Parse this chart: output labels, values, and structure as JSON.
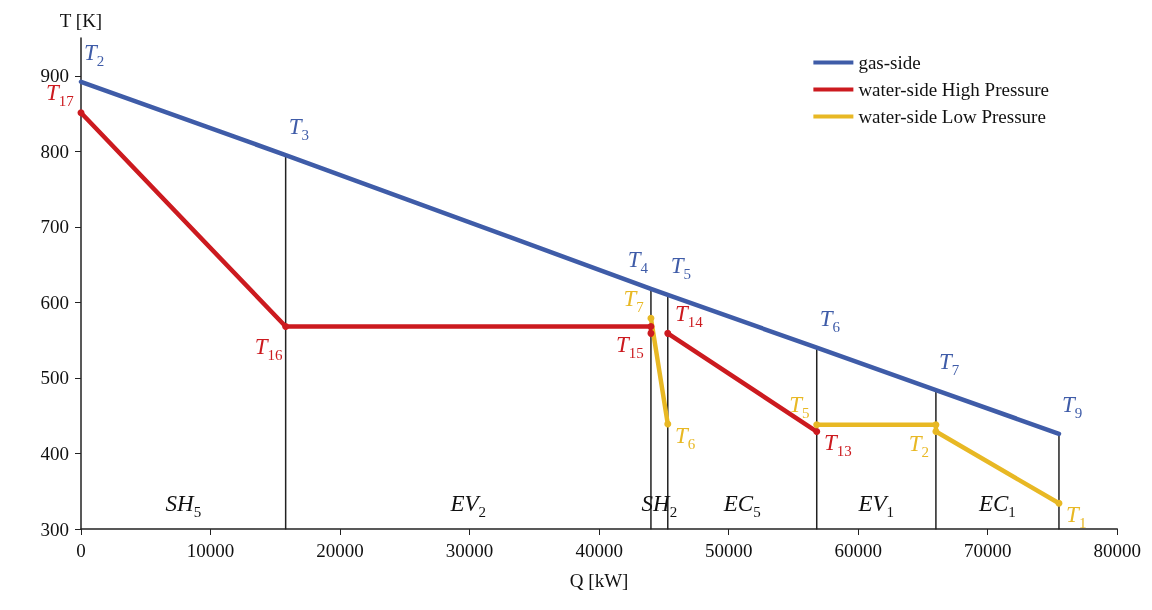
{
  "chart_data": {
    "type": "line",
    "xlabel": "Q [kW]",
    "ylabel": "T [K]",
    "xlim": [
      0,
      80000
    ],
    "xticks": [
      0,
      10000,
      20000,
      30000,
      40000,
      50000,
      60000,
      70000,
      80000
    ],
    "ylim": [
      300,
      950
    ],
    "yticks": [
      300,
      400,
      500,
      600,
      700,
      800,
      900
    ],
    "grid": false,
    "legend": "top right",
    "line_style": "solid",
    "series": [
      {
        "name": "gas-side",
        "color": "#3f5ca8",
        "marker": "none",
        "x": [
          0,
          15800,
          44000,
          45300,
          56800,
          66000,
          75500
        ],
        "values": [
          892,
          795,
          618,
          610,
          540,
          484,
          426
        ]
      },
      {
        "name": "water-side High Pressure",
        "color": "#cc1a1f",
        "marker": "circle",
        "x": [
          0,
          15800,
          44000,
          44000,
          44600,
          45300,
          56800
        ],
        "values": [
          851,
          568,
          568,
          559,
          null,
          559,
          429
        ]
      },
      {
        "name": "water-side Low Pressure",
        "color": "#e8b824",
        "marker": "circle",
        "x": [
          44000,
          45300,
          50000,
          56800,
          66000,
          66000,
          75500
        ],
        "values": [
          579,
          439,
          null,
          438,
          438,
          429,
          334
        ]
      },
      {
        "color": "#222222",
        "marker": "none",
        "x": [
          15800,
          15800
        ],
        "values": [
          300,
          795
        ]
      },
      {
        "color": "#222222",
        "marker": "none",
        "x": [
          44000,
          44000
        ],
        "values": [
          300,
          618
        ]
      },
      {
        "color": "#222222",
        "marker": "none",
        "x": [
          45300,
          45300
        ],
        "values": [
          300,
          610
        ]
      },
      {
        "color": "#222222",
        "marker": "none",
        "x": [
          56800,
          56800
        ],
        "values": [
          300,
          540
        ]
      },
      {
        "color": "#222222",
        "marker": "none",
        "x": [
          66000,
          66000
        ],
        "values": [
          300,
          484
        ]
      },
      {
        "color": "#222222",
        "marker": "none",
        "x": [
          75500,
          75500
        ],
        "values": [
          300,
          426
        ]
      }
    ],
    "annotations": [
      {
        "text": "T$_{2}$",
        "x": 0,
        "y": 892
      },
      {
        "text": "T$_{3}$",
        "x": 15800,
        "y": 795
      },
      {
        "text": "T$_{4}$",
        "x": 44000,
        "y": 618
      },
      {
        "text": "T$_{5}$",
        "x": 45300,
        "y": 610
      },
      {
        "text": "T$_{6}$",
        "x": 56800,
        "y": 540
      },
      {
        "text": "T$_{7}$",
        "x": 66000,
        "y": 484
      },
      {
        "text": "T$_{9}$",
        "x": 75500,
        "y": 426
      },
      {
        "text": "T$_{17}$",
        "x": 0,
        "y": 851
      },
      {
        "text": "T$_{16}$",
        "x": 15800,
        "y": 568
      },
      {
        "text": "T$_{15}$",
        "x": 44000,
        "y": 559
      },
      {
        "text": "T$_{14}$",
        "x": 45300,
        "y": 559
      },
      {
        "text": "T$_{13}$",
        "x": 56800,
        "y": 429
      },
      {
        "text": "T$_{7}$",
        "x": 44000,
        "y": 579
      },
      {
        "text": "T$_{6}$",
        "x": 45300,
        "y": 439
      },
      {
        "text": "T$_{5}$",
        "x": 56800,
        "y": 438
      },
      {
        "text": "T$_{2}$",
        "x": 66000,
        "y": 429
      },
      {
        "text": "T$_{1}$",
        "x": 75500,
        "y": 334
      },
      "SH$_{5}$",
      "EV$_{2}$",
      "SH$_{2}$",
      "EC$_{5}$",
      "EV$_{1}$",
      "EC$_{1}$"
    ]
  }
}
